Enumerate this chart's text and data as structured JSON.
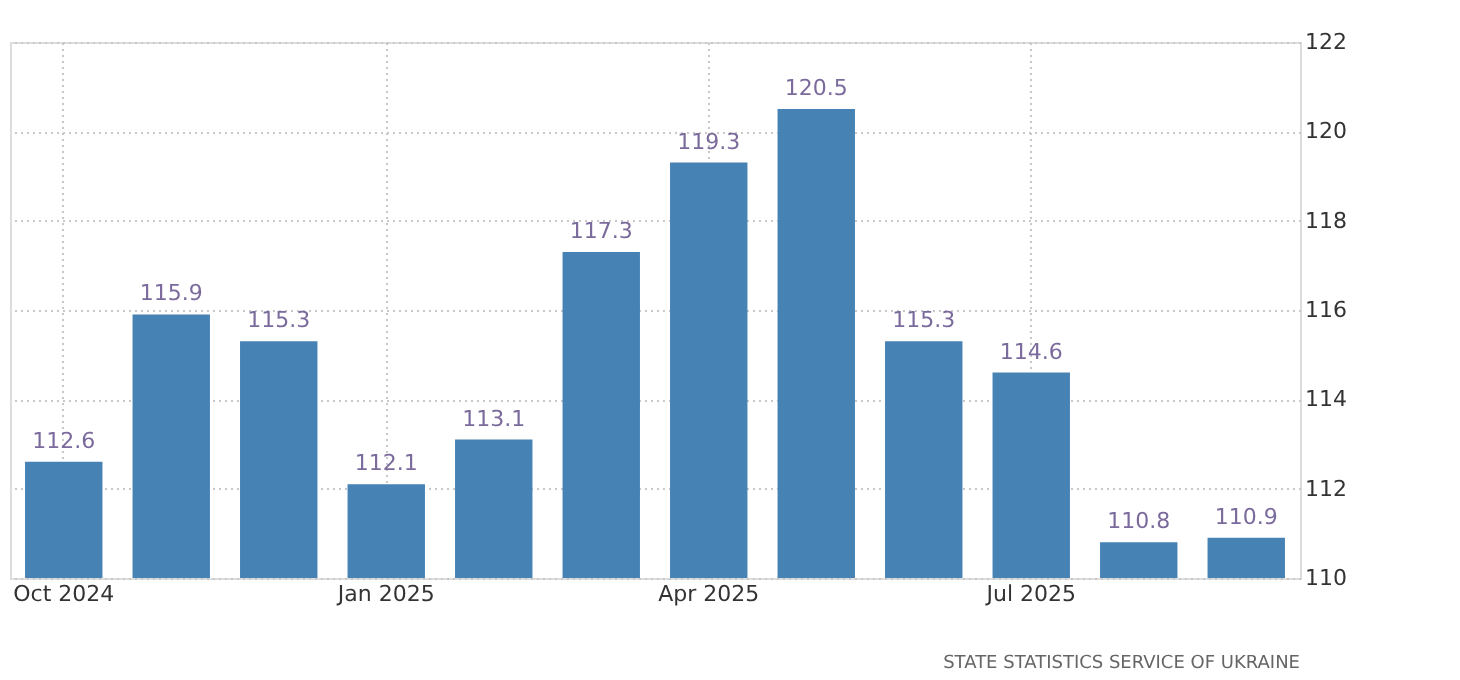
{
  "chart_data": {
    "type": "bar",
    "categories": [
      "Oct 2024",
      null,
      null,
      "Jan 2025",
      null,
      null,
      "Apr 2025",
      null,
      null,
      "Jul 2025",
      null,
      null
    ],
    "values": [
      112.6,
      115.9,
      115.3,
      112.1,
      113.1,
      117.3,
      119.3,
      120.5,
      115.3,
      114.6,
      110.8,
      110.9
    ],
    "color": "#4682b4",
    "ylim": [
      110,
      122
    ],
    "yticks": [
      110,
      112,
      114,
      116,
      118,
      120,
      122
    ],
    "grid": true,
    "data_labels": true,
    "annotations": [
      "STATE STATISTICS SERVICE OF UKRAINE"
    ]
  }
}
